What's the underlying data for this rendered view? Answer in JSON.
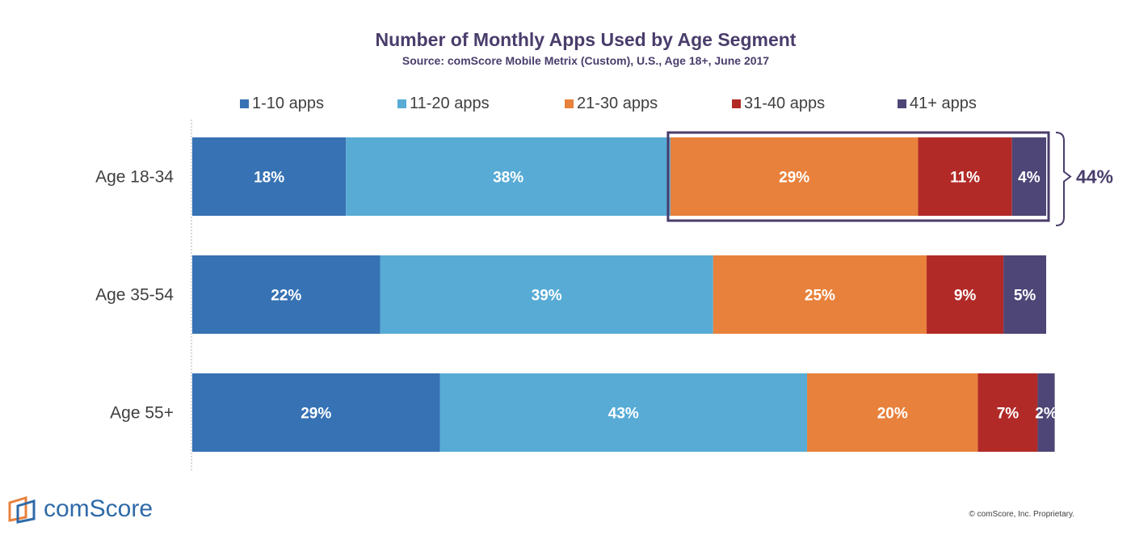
{
  "chart_data": {
    "type": "bar",
    "orientation": "horizontal",
    "stacked": true,
    "title": "Number of Monthly Apps Used by Age Segment",
    "subtitle": "Source: comScore Mobile Metrix (Custom), U.S., Age 18+, June 2017",
    "categories": [
      "Age 18-34",
      "Age 35-54",
      "Age 55+"
    ],
    "series": [
      {
        "name": "1-10 apps",
        "color": "#3672b4",
        "values": [
          18,
          22,
          29
        ],
        "labels": [
          "18%",
          "22%",
          "29%"
        ]
      },
      {
        "name": "11-20 apps",
        "color": "#57abd5",
        "values": [
          38,
          39,
          43
        ],
        "labels": [
          "38%",
          "39%",
          "43%"
        ]
      },
      {
        "name": "21-30 apps",
        "color": "#e8813c",
        "values": [
          29,
          25,
          20
        ],
        "labels": [
          "29%",
          "25%",
          "20%"
        ]
      },
      {
        "name": "31-40 apps",
        "color": "#b22a27",
        "values": [
          11,
          9,
          7
        ],
        "labels": [
          "11%",
          "9%",
          "7%"
        ]
      },
      {
        "name": "41+ apps",
        "color": "#4e4676",
        "values": [
          4,
          5,
          2
        ],
        "labels": [
          "4%",
          "5%",
          "2%"
        ]
      }
    ],
    "legend_position": "top",
    "grid": false,
    "annotation": {
      "category": "Age 18-34",
      "series_from": "21-30 apps",
      "series_to": "41+ apps",
      "label": "44%"
    }
  },
  "footer": {
    "logo_text": "comScore",
    "copyright": "© comScore, Inc. Proprietary."
  }
}
